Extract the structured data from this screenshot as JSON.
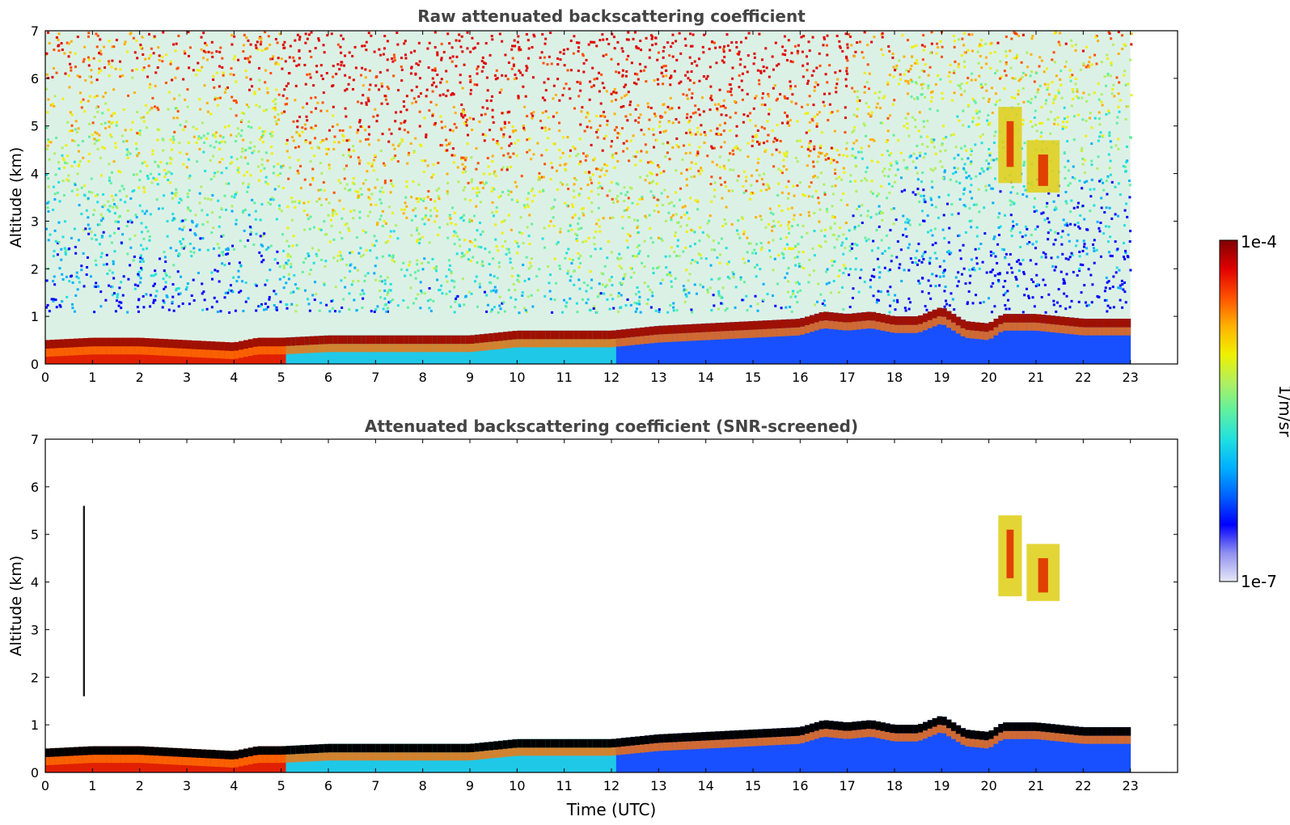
{
  "chart_data": [
    {
      "type": "heatmap",
      "title": "Raw attenuated backscattering coefficient",
      "xlabel": "",
      "ylabel": "Altitude (km)",
      "xlim": [
        0,
        24
      ],
      "ylim": [
        0,
        7
      ],
      "x_ticks": [
        "0",
        "1",
        "2",
        "3",
        "4",
        "5",
        "6",
        "7",
        "8",
        "9",
        "10",
        "11",
        "12",
        "13",
        "14",
        "15",
        "16",
        "17",
        "18",
        "19",
        "20",
        "21",
        "22",
        "23"
      ],
      "y_ticks": [
        "0",
        "1",
        "2",
        "3",
        "4",
        "5",
        "6",
        "7"
      ],
      "data_end_hour": 23,
      "boundary_layer_top_km": [
        [
          0,
          0.5
        ],
        [
          1,
          0.55
        ],
        [
          2,
          0.55
        ],
        [
          3,
          0.5
        ],
        [
          4,
          0.45
        ],
        [
          4.5,
          0.55
        ],
        [
          5,
          0.55
        ],
        [
          6,
          0.6
        ],
        [
          7,
          0.6
        ],
        [
          8,
          0.6
        ],
        [
          9,
          0.6
        ],
        [
          10,
          0.7
        ],
        [
          11,
          0.7
        ],
        [
          12,
          0.7
        ],
        [
          13,
          0.8
        ],
        [
          14,
          0.85
        ],
        [
          15,
          0.9
        ],
        [
          16,
          0.95
        ],
        [
          16.5,
          1.1
        ],
        [
          17,
          1.05
        ],
        [
          17.5,
          1.1
        ],
        [
          18,
          1.0
        ],
        [
          18.5,
          1.0
        ],
        [
          19,
          1.2
        ],
        [
          19.5,
          0.9
        ],
        [
          20,
          0.85
        ],
        [
          20.3,
          1.05
        ],
        [
          21,
          1.05
        ],
        [
          22,
          0.95
        ],
        [
          23,
          0.95
        ]
      ],
      "cloud_features": [
        {
          "t_start": 20.2,
          "t_end": 20.7,
          "alt_bottom_km": 3.8,
          "alt_top_km": 5.4
        },
        {
          "t_start": 20.8,
          "t_end": 21.5,
          "alt_bottom_km": 3.6,
          "alt_top_km": 4.7
        }
      ],
      "noise_note_color_upper": "#e0c030"
    },
    {
      "type": "heatmap",
      "title": "Attenuated backscattering coefficient (SNR-screened)",
      "xlabel": "Time (UTC)",
      "ylabel": "Altitude (km)",
      "xlim": [
        0,
        24
      ],
      "ylim": [
        0,
        7
      ],
      "x_ticks": [
        "0",
        "1",
        "2",
        "3",
        "4",
        "5",
        "6",
        "7",
        "8",
        "9",
        "10",
        "11",
        "12",
        "13",
        "14",
        "15",
        "16",
        "17",
        "18",
        "19",
        "20",
        "21",
        "22",
        "23"
      ],
      "y_ticks": [
        "0",
        "1",
        "2",
        "3",
        "4",
        "5",
        "6",
        "7"
      ],
      "data_end_hour": 23,
      "cloud_features": [
        {
          "t_start": 20.2,
          "t_end": 20.7,
          "alt_bottom_km": 3.7,
          "alt_top_km": 5.4
        },
        {
          "t_start": 20.8,
          "t_end": 21.5,
          "alt_bottom_km": 3.6,
          "alt_top_km": 4.8
        },
        {
          "t_start": 0.8,
          "t_end": 0.84,
          "alt_bottom_km": 1.6,
          "alt_top_km": 5.6
        }
      ]
    }
  ],
  "colorbar": {
    "label": "1/m/sr",
    "max_label": "1e-4",
    "min_label": "1e-7",
    "colors": [
      "#e8e8f8",
      "#9090f0",
      "#0000ff",
      "#0060ff",
      "#00b0ff",
      "#20e0e0",
      "#60f0a0",
      "#b0f060",
      "#f0f000",
      "#ffb000",
      "#ff5000",
      "#e00000",
      "#800000"
    ]
  },
  "colors": {
    "axes": "#000000",
    "title_text": "#444444",
    "boundary_layer": "#a01000",
    "below_layer": "#2060ff"
  }
}
